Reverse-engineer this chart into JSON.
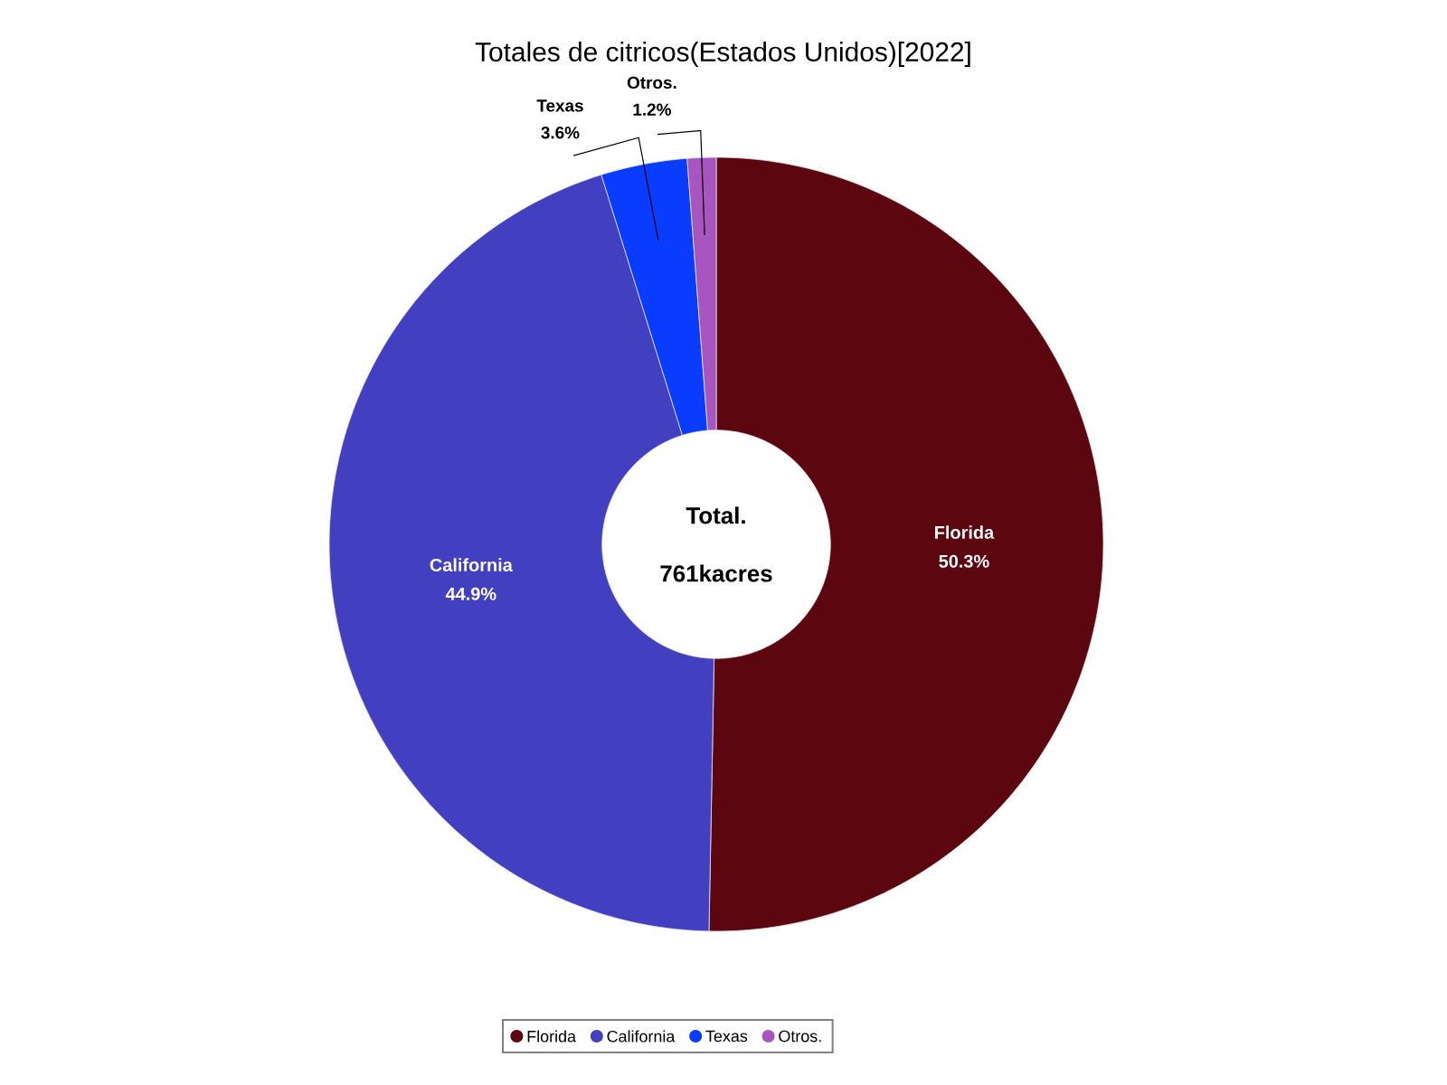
{
  "chart_data": {
    "type": "donut",
    "title": "Totales de citricos(Estados Unidos)[2022]",
    "categories": [
      "Florida",
      "California",
      "Texas",
      "Otros."
    ],
    "values": [
      50.3,
      44.9,
      3.6,
      1.2
    ],
    "value_labels": [
      "50.3%",
      "44.9%",
      "3.6%",
      "1.2%"
    ],
    "colors": [
      "#5c0610",
      "#4240c0",
      "#0a3cff",
      "#a855c0"
    ],
    "annotations": [
      "Total.",
      "761kacres"
    ],
    "legend": "bottom"
  }
}
